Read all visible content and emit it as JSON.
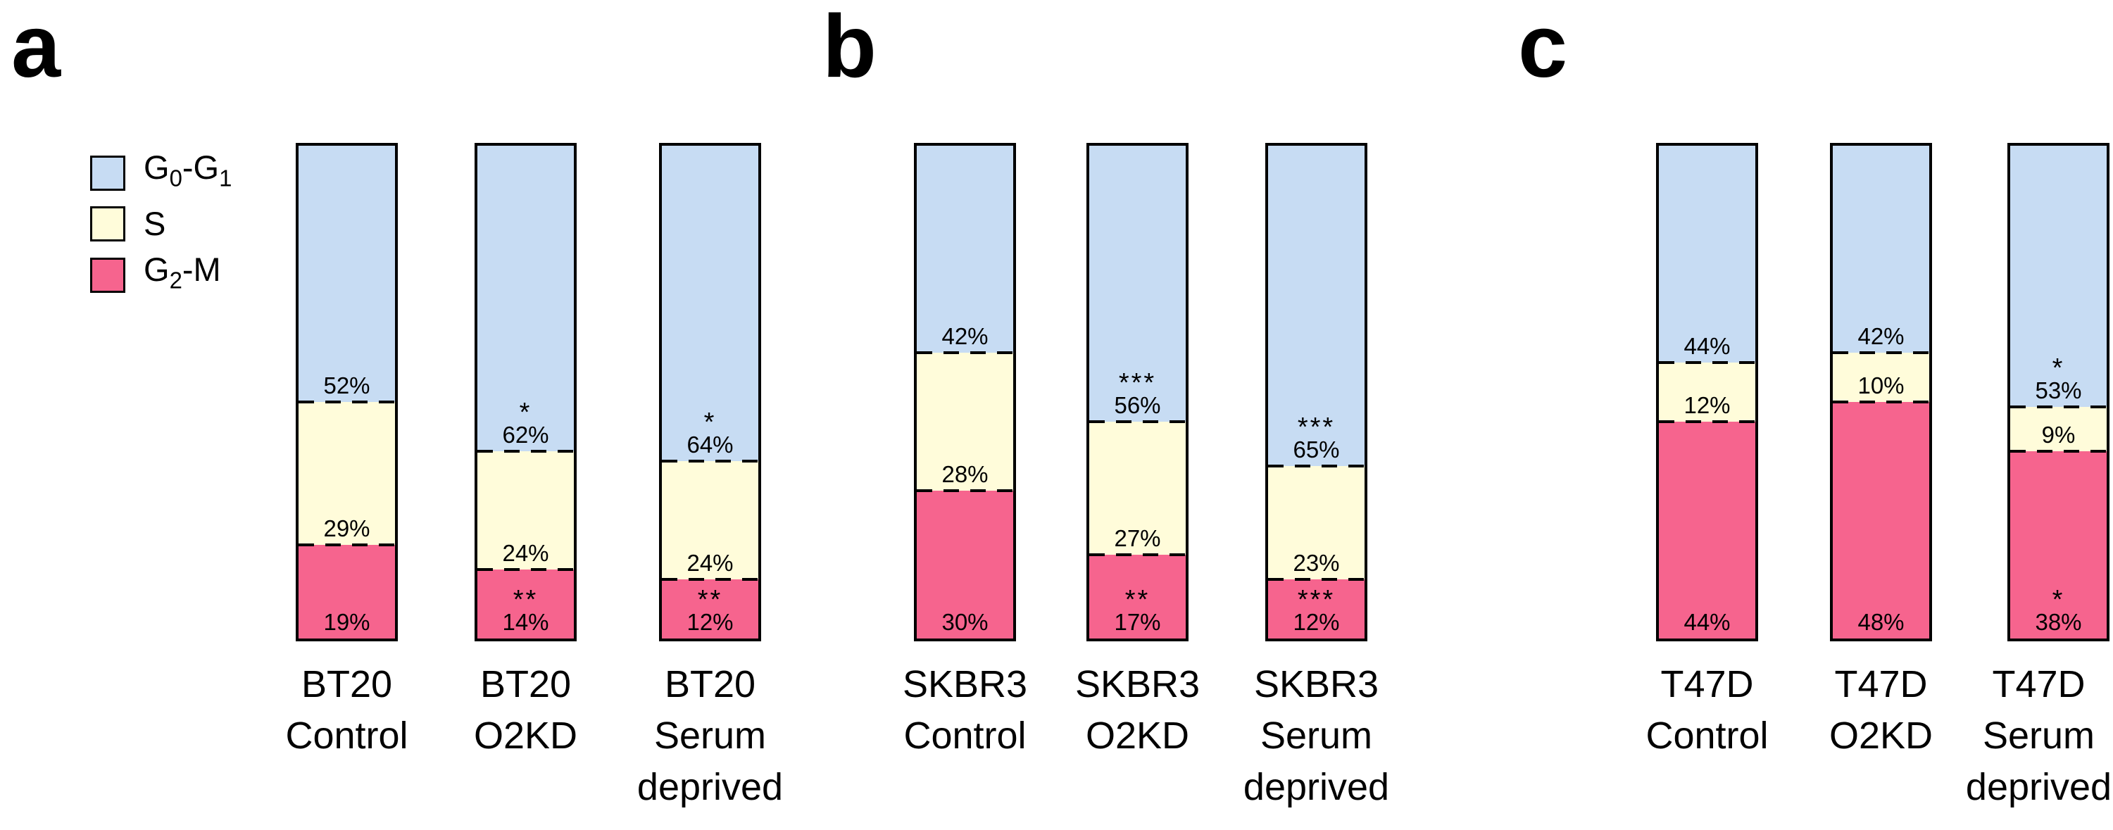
{
  "figure": {
    "background_color": "#ffffff",
    "text_color": "#000000"
  },
  "chart_data": {
    "type": "bar",
    "subtype": "100-percent-stacked-column",
    "value_unit": "%",
    "grid": "off",
    "axes": "none",
    "legend_position": "upper-left",
    "legend": {
      "entries": [
        {
          "label": "G0-G1",
          "color": "#c7dcf3"
        },
        {
          "label": "S",
          "color": "#fffcda"
        },
        {
          "label": "G2-M",
          "color": "#f6648e"
        }
      ]
    },
    "segment_order_top_to_bottom": [
      "G0-G1",
      "S",
      "G2-M"
    ],
    "panels": [
      {
        "panel_label": "a",
        "cell_line": "BT20",
        "bars": [
          {
            "category_lines": [
              "BT20",
              "Control"
            ],
            "segments": [
              {
                "phase": "G0-G1",
                "value": 52,
                "label": "52%",
                "significance": ""
              },
              {
                "phase": "S",
                "value": 29,
                "label": "29%",
                "significance": ""
              },
              {
                "phase": "G2-M",
                "value": 19,
                "label": "19%",
                "significance": ""
              }
            ]
          },
          {
            "category_lines": [
              "BT20",
              "O2KD"
            ],
            "segments": [
              {
                "phase": "G0-G1",
                "value": 62,
                "label": "62%",
                "significance": "*"
              },
              {
                "phase": "S",
                "value": 24,
                "label": "24%",
                "significance": ""
              },
              {
                "phase": "G2-M",
                "value": 14,
                "label": "14%",
                "significance": "**"
              }
            ]
          },
          {
            "category_lines": [
              "BT20",
              "Serum",
              "deprived"
            ],
            "segments": [
              {
                "phase": "G0-G1",
                "value": 64,
                "label": "64%",
                "significance": "*"
              },
              {
                "phase": "S",
                "value": 24,
                "label": "24%",
                "significance": ""
              },
              {
                "phase": "G2-M",
                "value": 12,
                "label": "12%",
                "significance": "**"
              }
            ]
          }
        ]
      },
      {
        "panel_label": "b",
        "cell_line": "SKBR3",
        "bars": [
          {
            "category_lines": [
              "SKBR3",
              "Control"
            ],
            "segments": [
              {
                "phase": "G0-G1",
                "value": 42,
                "label": "42%",
                "significance": ""
              },
              {
                "phase": "S",
                "value": 28,
                "label": "28%",
                "significance": ""
              },
              {
                "phase": "G2-M",
                "value": 30,
                "label": "30%",
                "significance": ""
              }
            ]
          },
          {
            "category_lines": [
              "SKBR3",
              "O2KD"
            ],
            "segments": [
              {
                "phase": "G0-G1",
                "value": 56,
                "label": "56%",
                "significance": "***"
              },
              {
                "phase": "S",
                "value": 27,
                "label": "27%",
                "significance": ""
              },
              {
                "phase": "G2-M",
                "value": 17,
                "label": "17%",
                "significance": "**"
              }
            ]
          },
          {
            "category_lines": [
              "SKBR3",
              "Serum",
              "deprived"
            ],
            "segments": [
              {
                "phase": "G0-G1",
                "value": 65,
                "label": "65%",
                "significance": "***"
              },
              {
                "phase": "S",
                "value": 23,
                "label": "23%",
                "significance": ""
              },
              {
                "phase": "G2-M",
                "value": 12,
                "label": "12%",
                "significance": "***"
              }
            ]
          }
        ]
      },
      {
        "panel_label": "c",
        "cell_line": "T47D",
        "bars": [
          {
            "category_lines": [
              "T47D",
              "Control"
            ],
            "segments": [
              {
                "phase": "G0-G1",
                "value": 44,
                "label": "44%",
                "significance": ""
              },
              {
                "phase": "S",
                "value": 12,
                "label": "12%",
                "significance": ""
              },
              {
                "phase": "G2-M",
                "value": 44,
                "label": "44%",
                "significance": ""
              }
            ]
          },
          {
            "category_lines": [
              "T47D",
              "O2KD"
            ],
            "segments": [
              {
                "phase": "G0-G1",
                "value": 42,
                "label": "42%",
                "significance": ""
              },
              {
                "phase": "S",
                "value": 10,
                "label": "10%",
                "significance": ""
              },
              {
                "phase": "G2-M",
                "value": 48,
                "label": "48%",
                "significance": ""
              }
            ]
          },
          {
            "category_lines": [
              "T47D",
              "Serum",
              "deprived"
            ],
            "segments": [
              {
                "phase": "G0-G1",
                "value": 53,
                "label": "53%",
                "significance": "*"
              },
              {
                "phase": "S",
                "value": 9,
                "label": "9%",
                "significance": ""
              },
              {
                "phase": "G2-M",
                "value": 38,
                "label": "38%",
                "significance": "*"
              }
            ]
          }
        ]
      }
    ]
  }
}
